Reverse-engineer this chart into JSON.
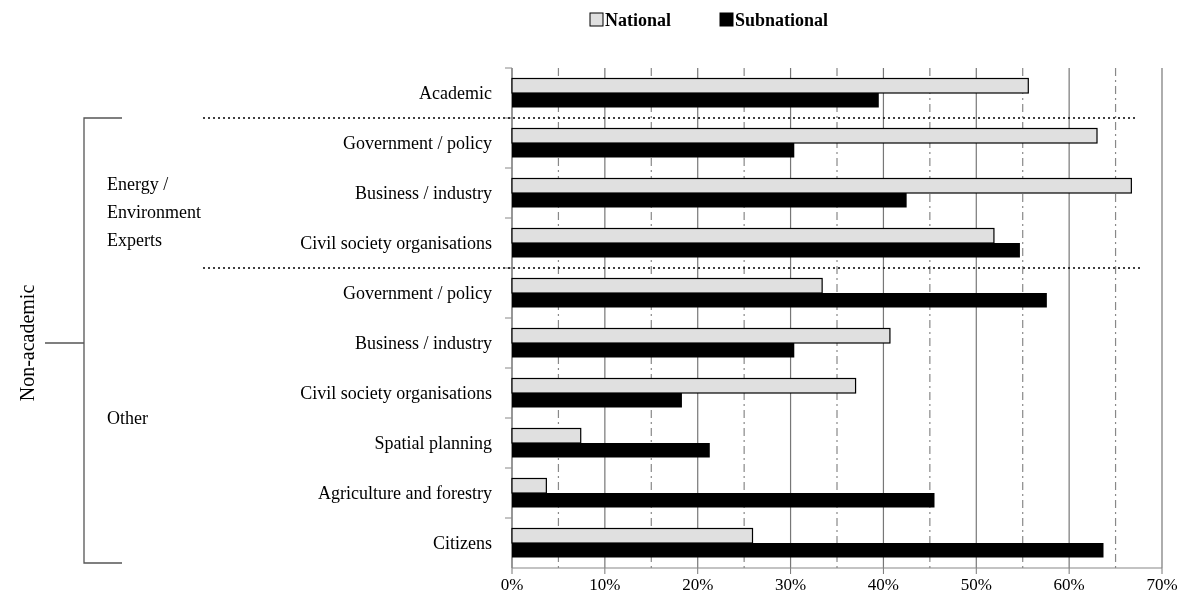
{
  "chart_data": {
    "type": "bar",
    "orientation": "horizontal",
    "categories": [
      "Academic",
      "Government / policy",
      "Business / industry",
      "Civil society organisations",
      "Government / policy",
      "Business / industry",
      "Civil society organisations",
      "Spatial planning",
      "Agriculture and forestry",
      "Citizens"
    ],
    "series": [
      {
        "name": "National",
        "color": "#e0e0e0",
        "values": [
          55.6,
          63.0,
          66.7,
          51.9,
          33.4,
          40.7,
          37.0,
          7.4,
          3.7,
          25.9
        ]
      },
      {
        "name": "Subnational",
        "color": "#000000",
        "values": [
          39.5,
          30.4,
          42.5,
          54.7,
          57.6,
          30.4,
          18.3,
          21.3,
          45.5,
          63.7
        ]
      }
    ],
    "xlim": [
      0,
      70
    ],
    "xticks": [
      {
        "value": 0,
        "label": "0%"
      },
      {
        "value": 5,
        "label": null
      },
      {
        "value": 10,
        "label": "10%"
      },
      {
        "value": 15,
        "label": null
      },
      {
        "value": 20,
        "label": "20%"
      },
      {
        "value": 25,
        "label": null
      },
      {
        "value": 30,
        "label": "30%"
      },
      {
        "value": 35,
        "label": null
      },
      {
        "value": 40,
        "label": "40%"
      },
      {
        "value": 45,
        "label": null
      },
      {
        "value": 50,
        "label": "50%"
      },
      {
        "value": 55,
        "label": null
      },
      {
        "value": 60,
        "label": "60%"
      },
      {
        "value": 65,
        "label": null
      },
      {
        "value": 70,
        "label": "70%"
      }
    ],
    "grid": "x",
    "legend": "top",
    "annotations": [
      "Energy / Environment Experts",
      "Other",
      "Non-academic"
    ]
  }
}
